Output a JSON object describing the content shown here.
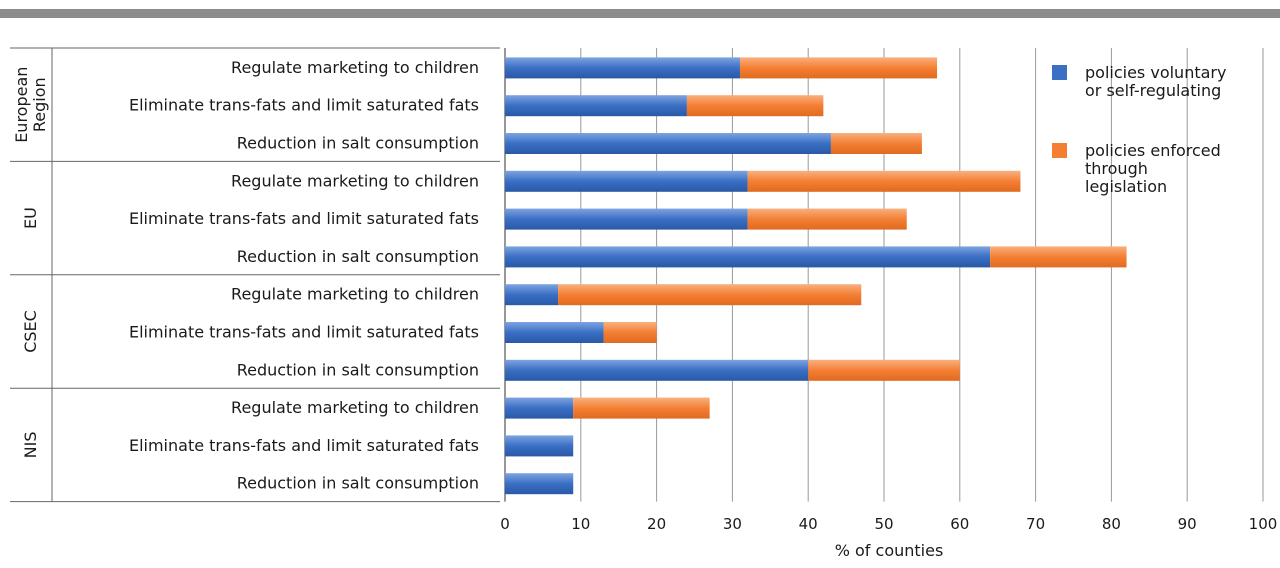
{
  "chart_data": {
    "type": "bar",
    "orientation": "horizontal",
    "stacked": true,
    "xlabel": "% of counties",
    "xlim": [
      0,
      100
    ],
    "xticks": [
      0,
      10,
      20,
      30,
      40,
      50,
      60,
      70,
      80,
      90,
      100
    ],
    "grid": true,
    "legend_position": "top-right",
    "colors": {
      "voluntary": "#3a6fc4",
      "enforced": "#f47f33"
    },
    "series": [
      {
        "name": "policies voluntary or self-regulating",
        "key": "voluntary"
      },
      {
        "name": "policies enforced through legislation",
        "key": "enforced"
      }
    ],
    "legend": [
      {
        "key": "voluntary",
        "lines": [
          "policies voluntary",
          "or self-regulating"
        ]
      },
      {
        "key": "enforced",
        "lines": [
          "policies enforced",
          "through",
          "legislation"
        ]
      }
    ],
    "groups": [
      {
        "name": "European Region",
        "name_lines": [
          "European",
          "Region"
        ],
        "rows": [
          {
            "label": "Regulate marketing to children",
            "voluntary": 31,
            "enforced": 26
          },
          {
            "label": "Eliminate trans-fats and limit saturated fats",
            "voluntary": 24,
            "enforced": 18
          },
          {
            "label": "Reduction in salt consumption",
            "voluntary": 43,
            "enforced": 12
          }
        ]
      },
      {
        "name": "EU",
        "name_lines": [
          "EU"
        ],
        "rows": [
          {
            "label": "Regulate marketing to children",
            "voluntary": 32,
            "enforced": 36
          },
          {
            "label": "Eliminate trans-fats and limit saturated fats",
            "voluntary": 32,
            "enforced": 21
          },
          {
            "label": "Reduction in salt consumption",
            "voluntary": 64,
            "enforced": 18
          }
        ]
      },
      {
        "name": "CSEC",
        "name_lines": [
          "CSEC"
        ],
        "rows": [
          {
            "label": "Regulate marketing to children",
            "voluntary": 7,
            "enforced": 40
          },
          {
            "label": "Eliminate trans-fats and limit saturated fats",
            "voluntary": 13,
            "enforced": 7
          },
          {
            "label": "Reduction in salt consumption",
            "voluntary": 40,
            "enforced": 20
          }
        ]
      },
      {
        "name": "NIS",
        "name_lines": [
          "NIS"
        ],
        "rows": [
          {
            "label": "Regulate marketing to children",
            "voluntary": 9,
            "enforced": 18
          },
          {
            "label": "Eliminate trans-fats and limit saturated fats",
            "voluntary": 9,
            "enforced": 0
          },
          {
            "label": "Reduction in salt consumption",
            "voluntary": 9,
            "enforced": 0
          }
        ]
      }
    ]
  }
}
